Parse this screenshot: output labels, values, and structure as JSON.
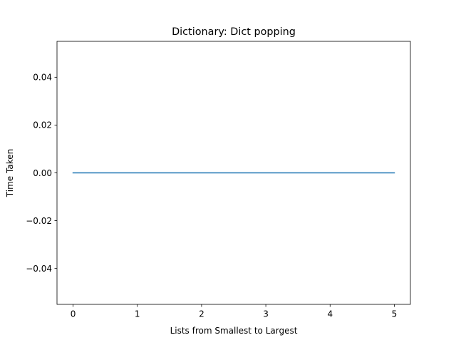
{
  "chart_data": {
    "type": "line",
    "title": "Dictionary: Dict popping",
    "xlabel": "Lists from Smallest to Largest",
    "ylabel": "Time Taken",
    "xlim": [
      -0.25,
      5.25
    ],
    "ylim": [
      -0.055,
      0.055
    ],
    "x_ticks": [
      0,
      1,
      2,
      3,
      4,
      5
    ],
    "x_tick_labels": [
      "0",
      "1",
      "2",
      "3",
      "4",
      "5"
    ],
    "y_ticks": [
      0.04,
      0.02,
      0.0,
      -0.02,
      -0.04
    ],
    "y_tick_labels": [
      "0.04",
      "0.02",
      "0.00",
      "−0.02",
      "−0.04"
    ],
    "grid": false,
    "series": [
      {
        "x": [
          0,
          1,
          2,
          3,
          4,
          5
        ],
        "values": [
          0,
          0,
          0,
          0,
          0,
          0
        ],
        "color": "#1f77b4"
      }
    ]
  }
}
